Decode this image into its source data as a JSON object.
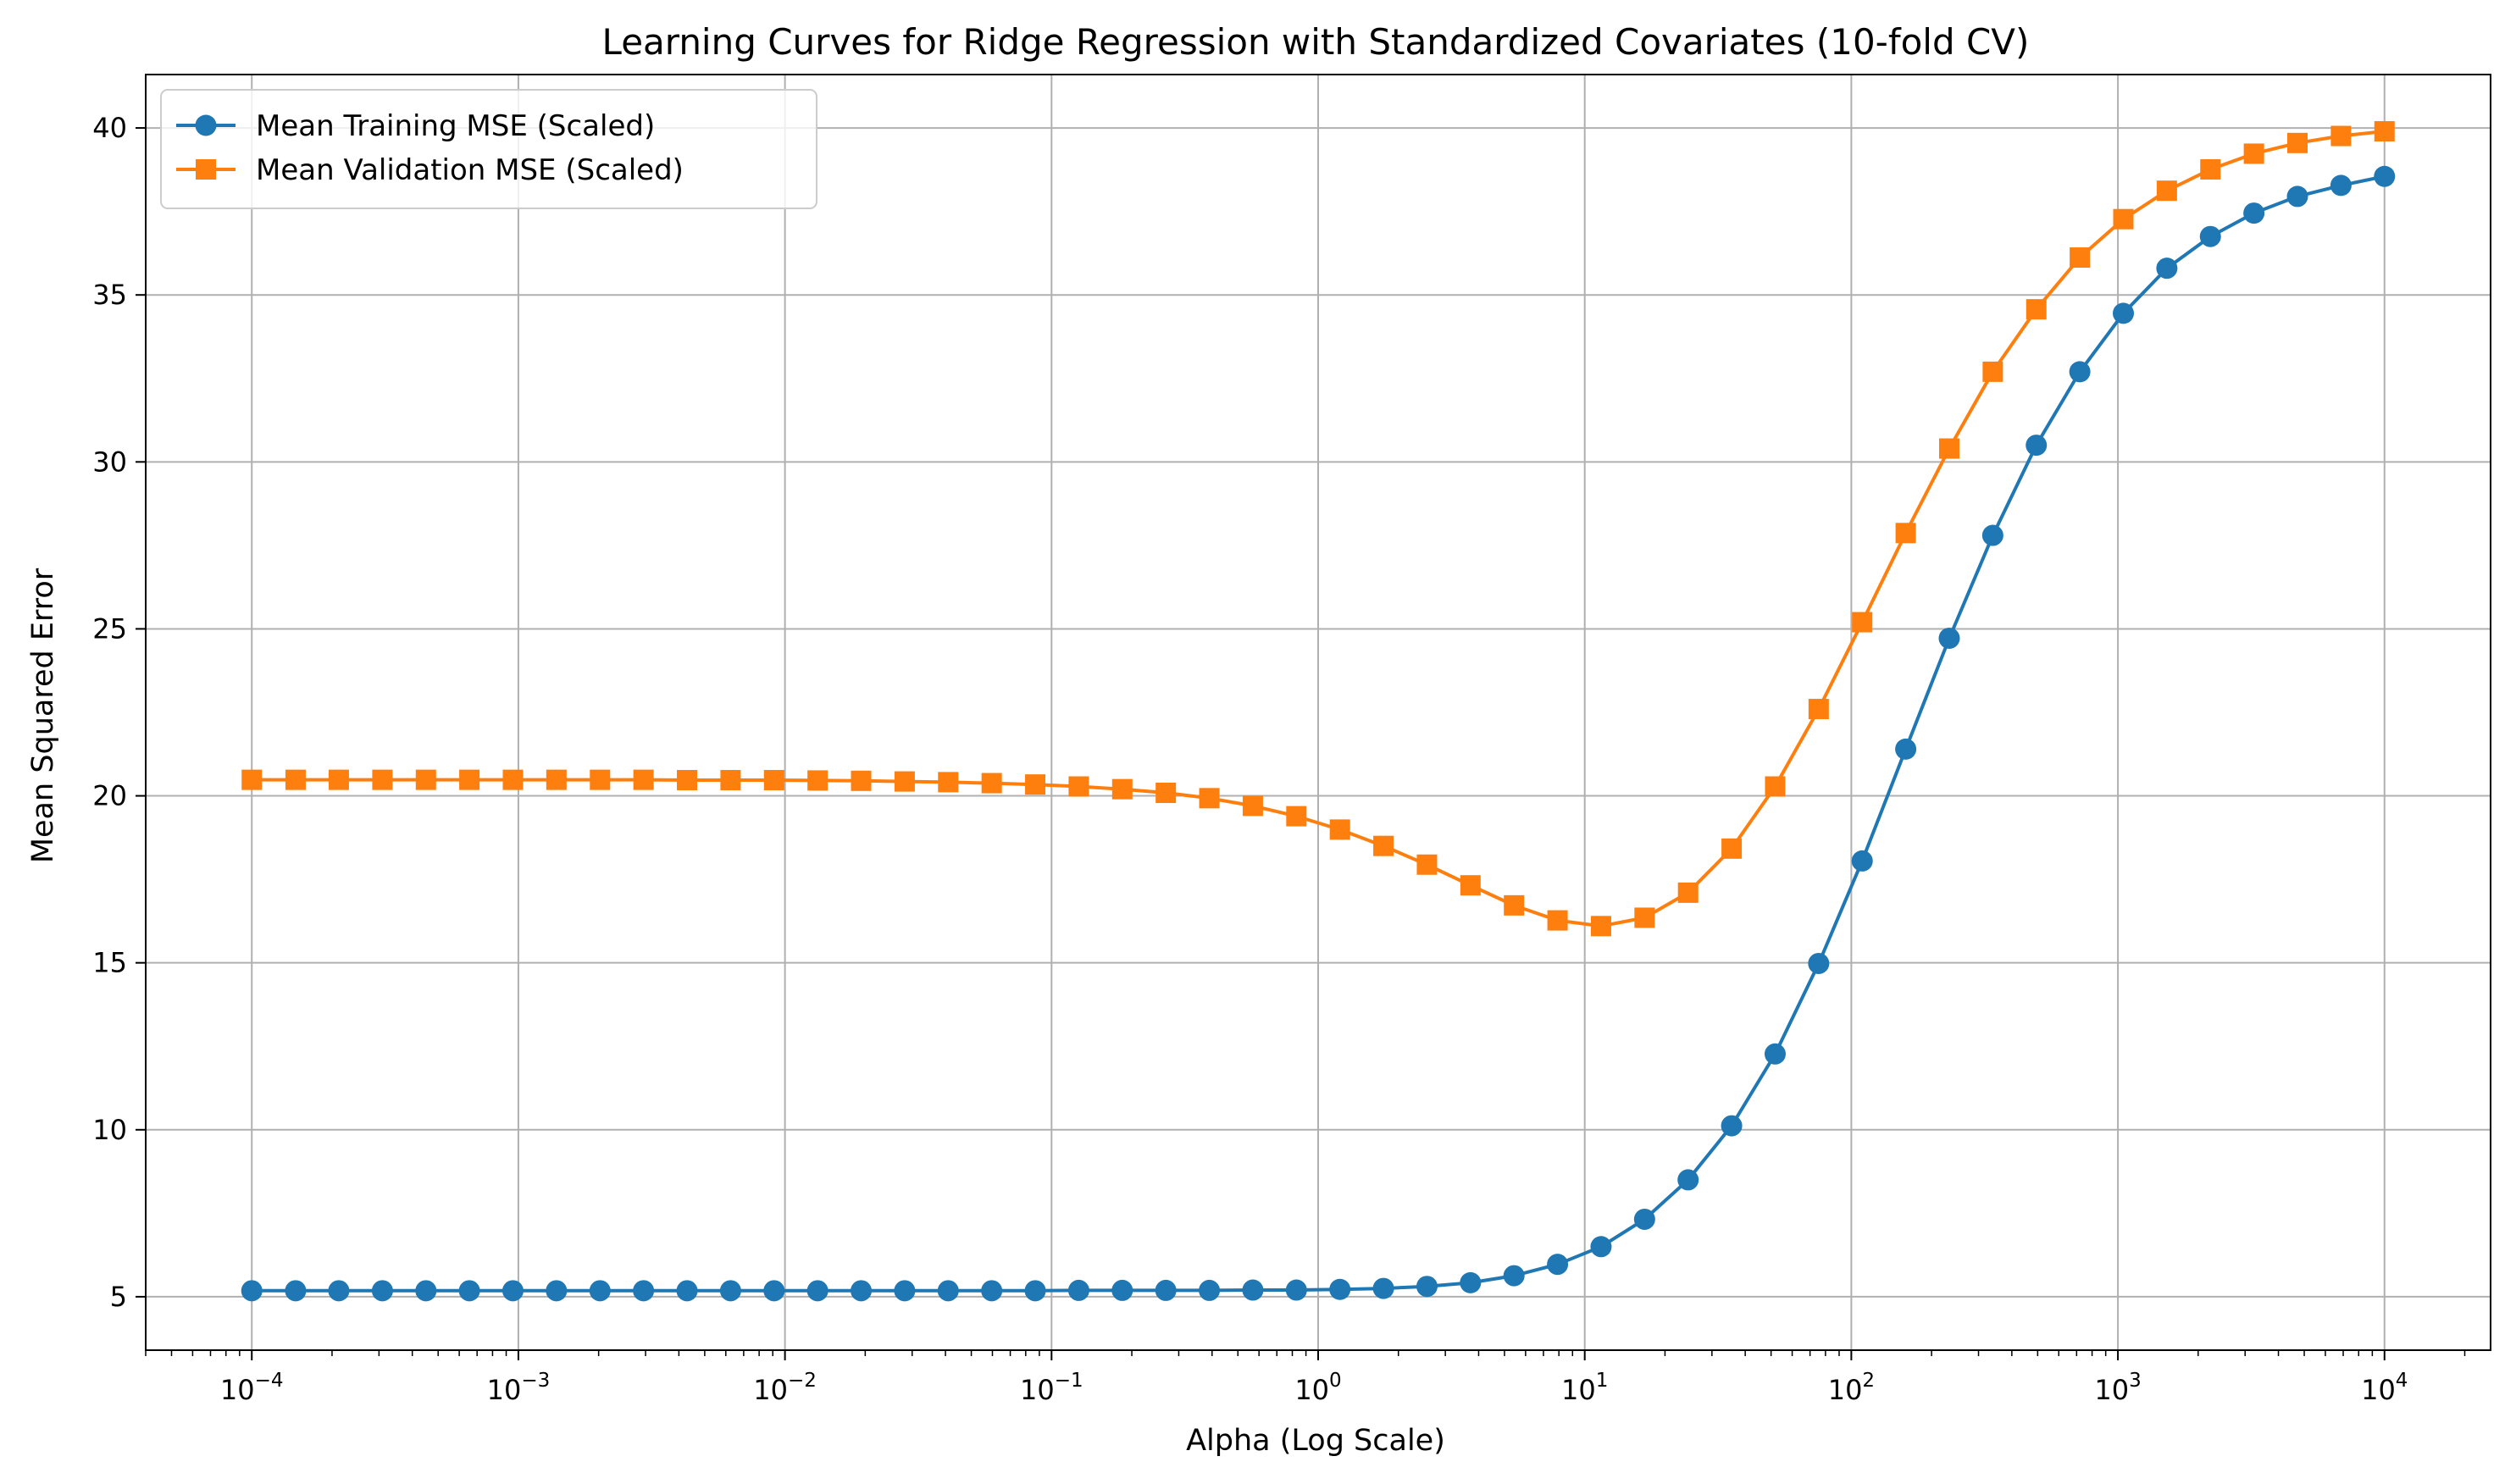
{
  "chart_data": {
    "type": "line",
    "title": "Learning Curves for Ridge Regression with Standardized Covariates (10-fold CV)",
    "xlabel": "Alpha (Log Scale)",
    "ylabel": "Mean Squared Error",
    "xscale": "log",
    "xlim": [
      4e-05,
      25000
    ],
    "ylim": [
      3.4,
      41.6
    ],
    "grid": true,
    "legend_position": "upper left",
    "x_ticks": [
      0.0001,
      0.001,
      0.01,
      0.1,
      1,
      10,
      100,
      1000,
      10000
    ],
    "x_tick_labels": [
      {
        "base": "10",
        "exp": "−4"
      },
      {
        "base": "10",
        "exp": "−3"
      },
      {
        "base": "10",
        "exp": "−2"
      },
      {
        "base": "10",
        "exp": "−1"
      },
      {
        "base": "10",
        "exp": "0"
      },
      {
        "base": "10",
        "exp": "1"
      },
      {
        "base": "10",
        "exp": "2"
      },
      {
        "base": "10",
        "exp": "3"
      },
      {
        "base": "10",
        "exp": "4"
      }
    ],
    "y_ticks": [
      5,
      10,
      15,
      20,
      25,
      30,
      35,
      40
    ],
    "y_tick_labels": [
      "5",
      "10",
      "15",
      "20",
      "25",
      "30",
      "35",
      "40"
    ],
    "x": [
      0.0001,
      0.000146,
      0.000212,
      0.000309,
      0.00045,
      0.000655,
      0.000954,
      0.001389,
      0.002024,
      0.002947,
      0.004292,
      0.006251,
      0.009103,
      0.013257,
      0.019307,
      0.028118,
      0.040949,
      0.059636,
      0.086851,
      0.126486,
      0.184207,
      0.26827,
      0.390694,
      0.568987,
      0.828643,
      1.206793,
      1.757511,
      2.559548,
      3.727594,
      5.428675,
      7.906043,
      11.513954,
      16.768329,
      24.420531,
      35.564803,
      51.794747,
      75.431201,
      109.854114,
      159.985872,
      232.995181,
      339.322177,
      494.171336,
      719.685673,
      1048.113134,
      1526.417967,
      2222.996483,
      3237.457543,
      4714.866363,
      6866.48845,
      10000
    ],
    "series": [
      {
        "name": "Mean Training MSE (Scaled)",
        "color": "#1f77b4",
        "marker": "circle",
        "values": [
          5.18,
          5.18,
          5.18,
          5.18,
          5.18,
          5.18,
          5.18,
          5.18,
          5.18,
          5.18,
          5.18,
          5.18,
          5.18,
          5.18,
          5.18,
          5.18,
          5.18,
          5.18,
          5.18,
          5.19,
          5.19,
          5.19,
          5.19,
          5.2,
          5.2,
          5.22,
          5.25,
          5.31,
          5.42,
          5.63,
          5.97,
          6.5,
          7.32,
          8.5,
          10.12,
          12.27,
          14.98,
          18.05,
          21.4,
          24.72,
          27.8,
          30.5,
          32.7,
          34.45,
          35.8,
          36.75,
          37.45,
          37.95,
          38.28,
          38.55
        ]
      },
      {
        "name": "Mean Validation MSE (Scaled)",
        "color": "#ff7f0e",
        "marker": "square",
        "values": [
          20.48,
          20.48,
          20.48,
          20.48,
          20.48,
          20.48,
          20.48,
          20.48,
          20.48,
          20.48,
          20.47,
          20.47,
          20.47,
          20.46,
          20.45,
          20.43,
          20.41,
          20.38,
          20.34,
          20.28,
          20.2,
          20.09,
          19.93,
          19.7,
          19.39,
          18.99,
          18.5,
          17.94,
          17.32,
          16.72,
          16.27,
          16.1,
          16.35,
          17.1,
          18.42,
          20.28,
          22.6,
          25.2,
          27.87,
          30.4,
          32.7,
          34.57,
          36.12,
          37.27,
          38.12,
          38.76,
          39.23,
          39.55,
          39.76,
          39.9
        ]
      }
    ]
  }
}
